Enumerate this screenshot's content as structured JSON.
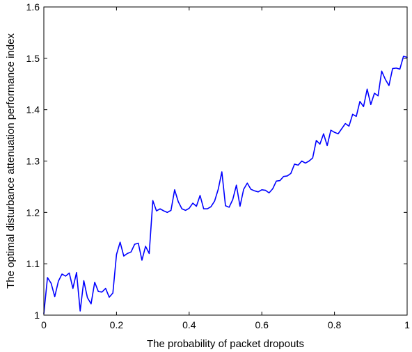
{
  "chart_data": {
    "type": "line",
    "title": "",
    "xlabel": "The probability of packet dropouts",
    "ylabel": "The optimal disturbance attenuation performance index",
    "xlim": [
      0,
      1
    ],
    "ylim": [
      1,
      1.6
    ],
    "grid": false,
    "legend": "none",
    "x_ticks": [
      0,
      0.2,
      0.4,
      0.6,
      0.8,
      1
    ],
    "x_tick_labels": [
      "0",
      "0.2",
      "0.4",
      "0.6",
      "0.8",
      "1"
    ],
    "y_ticks": [
      1,
      1.1,
      1.2,
      1.3,
      1.4,
      1.5,
      1.6
    ],
    "y_tick_labels": [
      "1",
      "1.1",
      "1.2",
      "1.3",
      "1.4",
      "1.5",
      "1.6"
    ],
    "series": [
      {
        "color": "#0000ff",
        "x": [
          0,
          0.01,
          0.02,
          0.03,
          0.04,
          0.05,
          0.06,
          0.07,
          0.08,
          0.09,
          0.1,
          0.11,
          0.12,
          0.13,
          0.14,
          0.15,
          0.16,
          0.17,
          0.18,
          0.19,
          0.2,
          0.21,
          0.22,
          0.23,
          0.24,
          0.25,
          0.26,
          0.27,
          0.28,
          0.29,
          0.3,
          0.31,
          0.32,
          0.33,
          0.34,
          0.35,
          0.36,
          0.37,
          0.38,
          0.39,
          0.4,
          0.41,
          0.42,
          0.43,
          0.44,
          0.45,
          0.46,
          0.47,
          0.48,
          0.49,
          0.5,
          0.51,
          0.52,
          0.53,
          0.54,
          0.55,
          0.56,
          0.57,
          0.58,
          0.59,
          0.6,
          0.61,
          0.62,
          0.63,
          0.64,
          0.65,
          0.66,
          0.67,
          0.68,
          0.69,
          0.7,
          0.71,
          0.72,
          0.73,
          0.74,
          0.75,
          0.76,
          0.77,
          0.78,
          0.79,
          0.8,
          0.81,
          0.82,
          0.83,
          0.84,
          0.85,
          0.86,
          0.87,
          0.88,
          0.89,
          0.9,
          0.91,
          0.92,
          0.93,
          0.94,
          0.95,
          0.96,
          0.97,
          0.98,
          0.99,
          1.0
        ],
        "y": [
          1.003,
          1.073,
          1.062,
          1.036,
          1.066,
          1.08,
          1.076,
          1.082,
          1.052,
          1.083,
          1.008,
          1.067,
          1.034,
          1.022,
          1.064,
          1.046,
          1.045,
          1.052,
          1.035,
          1.043,
          1.118,
          1.142,
          1.115,
          1.12,
          1.123,
          1.138,
          1.14,
          1.107,
          1.134,
          1.12,
          1.223,
          1.203,
          1.207,
          1.203,
          1.2,
          1.204,
          1.244,
          1.221,
          1.207,
          1.204,
          1.208,
          1.218,
          1.212,
          1.233,
          1.207,
          1.207,
          1.211,
          1.222,
          1.245,
          1.279,
          1.213,
          1.21,
          1.225,
          1.253,
          1.212,
          1.245,
          1.257,
          1.245,
          1.242,
          1.24,
          1.244,
          1.243,
          1.238,
          1.246,
          1.261,
          1.262,
          1.27,
          1.271,
          1.276,
          1.294,
          1.292,
          1.3,
          1.296,
          1.3,
          1.306,
          1.34,
          1.333,
          1.353,
          1.33,
          1.36,
          1.356,
          1.353,
          1.363,
          1.373,
          1.368,
          1.391,
          1.387,
          1.416,
          1.406,
          1.44,
          1.41,
          1.432,
          1.427,
          1.475,
          1.459,
          1.447,
          1.48,
          1.481,
          1.479,
          1.504,
          1.502
        ]
      }
    ]
  }
}
